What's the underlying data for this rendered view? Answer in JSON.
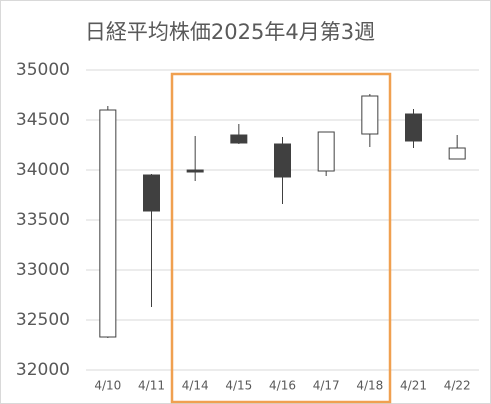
{
  "chart_data": {
    "type": "candlestick",
    "title": "日経平均株価2025年4月第3週",
    "categories": [
      "4/10",
      "4/11",
      "4/14",
      "4/15",
      "4/16",
      "4/17",
      "4/18",
      "4/21",
      "4/22"
    ],
    "open": [
      32330,
      33950,
      34000,
      34350,
      34260,
      33990,
      34360,
      34560,
      34110
    ],
    "high": [
      34640,
      33960,
      34340,
      34460,
      34330,
      34380,
      34760,
      34610,
      34350
    ],
    "low": [
      32320,
      32630,
      33890,
      34260,
      33660,
      33940,
      34230,
      34220,
      34110
    ],
    "close": [
      34600,
      33590,
      33980,
      34270,
      33930,
      34380,
      34740,
      34290,
      34220
    ],
    "up_color": "#ffffff",
    "down_color": "#404040",
    "line_color": "#404040",
    "ylim": [
      32000,
      35000
    ],
    "yticks": [
      32000,
      32500,
      33000,
      33500,
      34000,
      34500,
      35000
    ],
    "grid": true
  }
}
